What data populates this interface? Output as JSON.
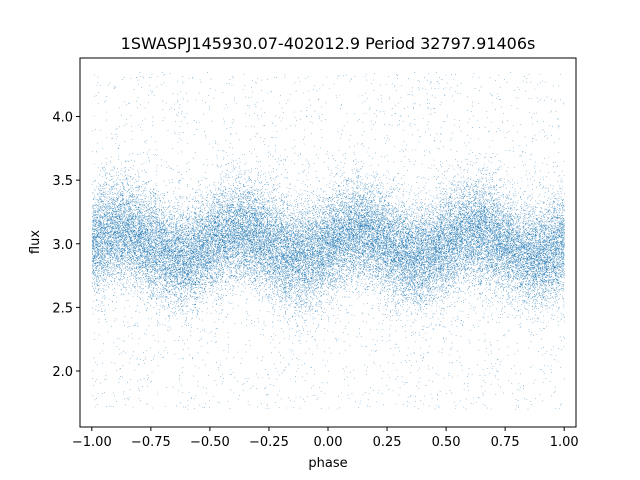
{
  "chart_data": {
    "type": "scatter",
    "title": "1SWASPJ145930.07-402012.9 Period 32797.91406s",
    "xlabel": "phase",
    "ylabel": "flux",
    "xlim": [
      -1.05,
      1.05
    ],
    "ylim": [
      1.56,
      4.46
    ],
    "x_ticks": [
      -1.0,
      -0.75,
      -0.5,
      -0.25,
      0.0,
      0.25,
      0.5,
      0.75,
      1.0
    ],
    "x_tick_labels": [
      "−1.00",
      "−0.75",
      "−0.50",
      "−0.25",
      "0.00",
      "0.25",
      "0.50",
      "0.75",
      "1.00"
    ],
    "y_ticks": [
      2.0,
      2.5,
      3.0,
      3.5,
      4.0
    ],
    "y_tick_labels": [
      "2.0",
      "2.5",
      "3.0",
      "3.5",
      "4.0"
    ],
    "grid": false,
    "legend": "none",
    "point_color": "#1f77b4",
    "phase_range": [
      -1.0,
      1.0
    ],
    "flux_range": [
      1.7,
      4.35
    ],
    "baseline_flux": 3.0,
    "modulation_amplitude": 0.1,
    "modulation_cycles_per_unit_phase": 2,
    "flux_scatter_sigma": 0.2,
    "point_count": 40000,
    "outlier_fraction": 0.08
  }
}
